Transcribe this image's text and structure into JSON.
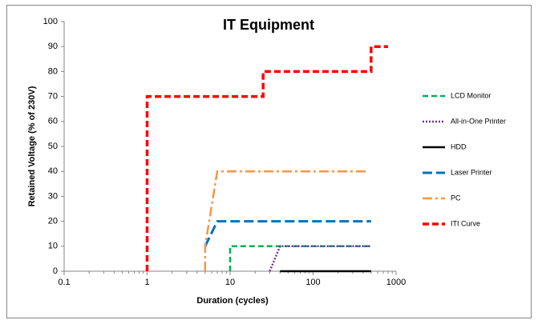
{
  "chart_data": {
    "type": "line",
    "title": "IT Equipment",
    "x_label": "Duration (cycles)",
    "y_label": "Retained Voltage (% of 230V)",
    "log_x": true,
    "xlim": [
      0.1,
      1000
    ],
    "xticks": [
      0.1,
      1,
      10,
      100,
      1000
    ],
    "xminorticks": [
      0.2,
      0.3,
      0.4,
      0.5,
      0.6,
      0.7,
      0.8,
      0.9,
      2,
      3,
      4,
      5,
      6,
      7,
      8,
      9,
      20,
      30,
      40,
      50,
      60,
      70,
      80,
      90,
      200,
      300,
      400,
      500,
      600,
      700,
      800,
      900
    ],
    "ylim": [
      0,
      100
    ],
    "yticks": [
      0,
      10,
      20,
      30,
      40,
      50,
      60,
      70,
      80,
      90,
      100
    ],
    "grid": false,
    "legend": "right",
    "series": [
      {
        "name": "LCD Monitor",
        "color": "#00b050",
        "dash": "dash",
        "x": [
          10,
          10,
          500
        ],
        "values": [
          0,
          10,
          10
        ]
      },
      {
        "name": "All-in-One Printer",
        "color": "#7030a0",
        "dash": "dot",
        "x": [
          30,
          40,
          500
        ],
        "values": [
          0,
          10,
          10
        ]
      },
      {
        "name": "HDD",
        "color": "#000000",
        "dash": "solid",
        "x": [
          40,
          500
        ],
        "values": [
          0,
          0
        ]
      },
      {
        "name": "Laser Printer",
        "color": "#0070c0",
        "dash": "longdash",
        "x": [
          5,
          7,
          500
        ],
        "values": [
          10,
          20,
          20
        ]
      },
      {
        "name": "PC",
        "color": "#f79646",
        "dash": "dashdot",
        "x": [
          5,
          5,
          7,
          450
        ],
        "values": [
          0,
          10,
          40,
          40
        ]
      },
      {
        "name": "ITI Curve",
        "color": "#ff0000",
        "dash": "thickdash",
        "x": [
          1,
          1,
          25,
          25,
          500,
          500,
          800
        ],
        "values": [
          0,
          70,
          70,
          80,
          80,
          90,
          90
        ]
      }
    ]
  }
}
